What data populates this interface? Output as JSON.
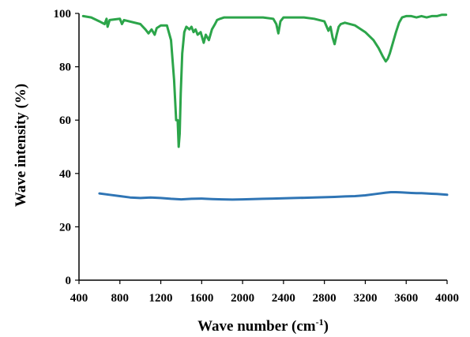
{
  "chart_data": {
    "type": "line",
    "title": "",
    "xlabel": {
      "prefix": "Wave number (cm",
      "sup": "-1",
      "suffix": ")"
    },
    "ylabel": "Wave intensity (%)",
    "xlim": [
      400,
      4000
    ],
    "ylim": [
      0,
      100
    ],
    "grid": false,
    "legend": "none",
    "x_ticks": [
      400,
      800,
      1200,
      1600,
      2000,
      2400,
      2800,
      3200,
      3600,
      4000
    ],
    "y_ticks": [
      0,
      20,
      40,
      60,
      80,
      100
    ],
    "series": [
      {
        "color": "#2ca54a",
        "x": [
          440,
          520,
          600,
          650,
          670,
          680,
          700,
          800,
          820,
          840,
          1000,
          1050,
          1080,
          1110,
          1140,
          1160,
          1200,
          1260,
          1300,
          1330,
          1350,
          1365,
          1375,
          1385,
          1395,
          1410,
          1430,
          1450,
          1480,
          1500,
          1520,
          1540,
          1560,
          1590,
          1620,
          1640,
          1670,
          1700,
          1730,
          1750,
          1780,
          1820,
          1900,
          2000,
          2100,
          2200,
          2300,
          2330,
          2350,
          2370,
          2400,
          2500,
          2600,
          2700,
          2800,
          2840,
          2860,
          2880,
          2900,
          2920,
          2940,
          2960,
          3000,
          3100,
          3200,
          3280,
          3330,
          3370,
          3400,
          3420,
          3440,
          3470,
          3500,
          3530,
          3560,
          3600,
          3650,
          3700,
          3750,
          3800,
          3850,
          3900,
          3950,
          3990
        ],
        "y": [
          99,
          98.5,
          97,
          96,
          98,
          95,
          97.5,
          98,
          96,
          97.5,
          96,
          94,
          92.5,
          94,
          92,
          94.5,
          95.5,
          95.5,
          90,
          75,
          60,
          60,
          50,
          55,
          70,
          85,
          93,
          95,
          94,
          95,
          93,
          94,
          92,
          93,
          89,
          92,
          90,
          94,
          96,
          97.5,
          98,
          98.5,
          98.5,
          98.5,
          98.5,
          98.5,
          98,
          96,
          92.5,
          97,
          98.5,
          98.5,
          98.5,
          98,
          97,
          93.5,
          95,
          91,
          88.5,
          92,
          95,
          96,
          96.5,
          95.5,
          93,
          90,
          87,
          84,
          82,
          83,
          85,
          89,
          93,
          96.5,
          98.5,
          99,
          99,
          98.5,
          99,
          98.5,
          99,
          99,
          99.5,
          99.5
        ]
      },
      {
        "color": "#2f75b5",
        "x": [
          600,
          700,
          800,
          900,
          1000,
          1100,
          1200,
          1300,
          1400,
          1500,
          1600,
          1700,
          1800,
          1900,
          2000,
          2100,
          2200,
          2300,
          2400,
          2500,
          2600,
          2700,
          2800,
          2900,
          3000,
          3100,
          3200,
          3300,
          3400,
          3450,
          3500,
          3550,
          3600,
          3650,
          3700,
          3750,
          3800,
          3850,
          3900,
          3950,
          4000
        ],
        "y": [
          32.5,
          32,
          31.5,
          31,
          30.8,
          31,
          30.8,
          30.5,
          30.3,
          30.5,
          30.6,
          30.4,
          30.3,
          30.2,
          30.3,
          30.4,
          30.5,
          30.6,
          30.7,
          30.8,
          30.9,
          31,
          31.1,
          31.2,
          31.4,
          31.5,
          31.8,
          32.3,
          32.8,
          33,
          33,
          32.9,
          32.8,
          32.7,
          32.6,
          32.6,
          32.5,
          32.4,
          32.3,
          32.2,
          32
        ]
      }
    ]
  }
}
